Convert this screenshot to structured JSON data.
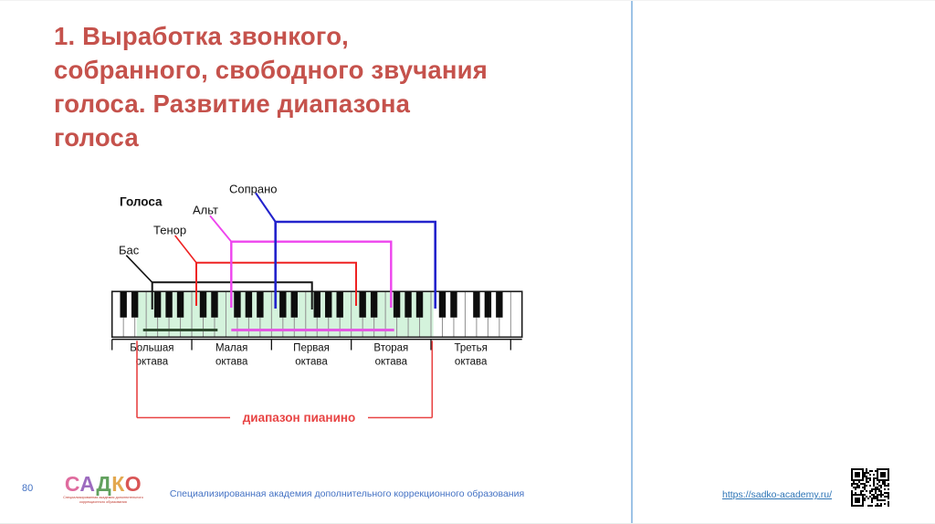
{
  "slide": {
    "title": "1. Выработка звонкого,\nсобранного, свободного звучания\nголоса. Развитие диапазона\nголоса",
    "title_color": "#c5524c"
  },
  "diagram": {
    "legend_title": "Голоса",
    "voices": [
      {
        "name": "Бас",
        "color": "#141414"
      },
      {
        "name": "Тенор",
        "color": "#ee2222"
      },
      {
        "name": "Альт",
        "color": "#ee44ee"
      },
      {
        "name": "Сопрано",
        "color": "#2323cc"
      }
    ],
    "octaves": [
      {
        "line1": "Большая",
        "line2": "октава"
      },
      {
        "line1": "Малая",
        "line2": "октава"
      },
      {
        "line1": "Первая",
        "line2": "октава"
      },
      {
        "line1": "Вторая",
        "line2": "октава"
      },
      {
        "line1": "Третья",
        "line2": "октава"
      }
    ],
    "piano_range_label": "диапазон пианино",
    "piano_range_color": "#e84444",
    "highlight_color": "#d4f3dc",
    "key_segments": [
      {
        "color": "#2f4a2f"
      },
      {
        "color": "#e35ae3"
      }
    ]
  },
  "footer": {
    "page_number": "80",
    "logo_letters": [
      {
        "ch": "С",
        "color": "#df6b9e"
      },
      {
        "ch": "А",
        "color": "#9d6bbf"
      },
      {
        "ch": "Д",
        "color": "#62a15e"
      },
      {
        "ch": "К",
        "color": "#e3a84f"
      },
      {
        "ch": "О",
        "color": "#d95555"
      }
    ],
    "logo_subtext": "Специализированная академия дополнительного коррекционного образования",
    "org_name": "Специализированная академия дополнительного коррекционного образования",
    "link": "https://sadko-academy.ru/"
  },
  "colors": {
    "divider": "#9dc3e6",
    "footer_text": "#4472c4",
    "link": "#2e75b6"
  }
}
